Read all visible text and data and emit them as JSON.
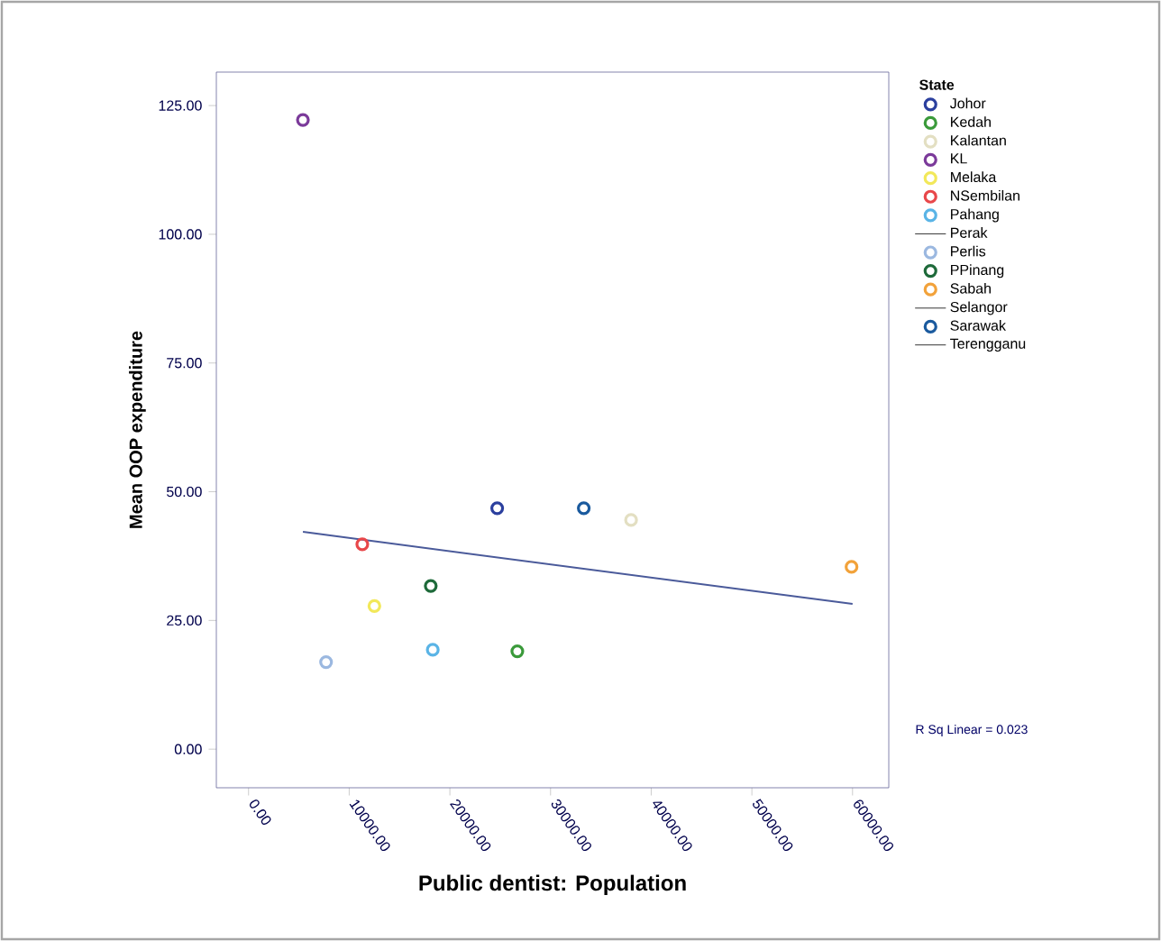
{
  "chart_data": {
    "type": "scatter",
    "xlabel": "Public dentist: Population",
    "ylabel": "Mean OOP expenditure",
    "legend_title": "State",
    "xlim": [
      -3200,
      63600
    ],
    "ylim": [
      -7.5,
      131.5
    ],
    "xticks": [
      {
        "value": 0,
        "label": "0.00"
      },
      {
        "value": 10000,
        "label": "10000.00"
      },
      {
        "value": 20000,
        "label": "20000.00"
      },
      {
        "value": 30000,
        "label": "30000.00"
      },
      {
        "value": 40000,
        "label": "40000.00"
      },
      {
        "value": 50000,
        "label": "50000.00"
      },
      {
        "value": 60000,
        "label": "60000.00"
      }
    ],
    "yticks": [
      {
        "value": 0,
        "label": "0.00"
      },
      {
        "value": 25,
        "label": "25.00"
      },
      {
        "value": 50,
        "label": "50.00"
      },
      {
        "value": 75,
        "label": "75.00"
      },
      {
        "value": 100,
        "label": "100.00"
      },
      {
        "value": 125,
        "label": "125.00"
      }
    ],
    "marker": "circle",
    "legend": "right",
    "grid": false,
    "annotations": [
      "R Sq Linear = 0.023"
    ],
    "series": [
      {
        "name": "Johor",
        "color": "#2b3f9e",
        "x": [
          24700
        ],
        "values": [
          46.8
        ]
      },
      {
        "name": "Kedah",
        "color": "#3a9a3a",
        "x": [
          26700
        ],
        "values": [
          19.0
        ]
      },
      {
        "name": "Kalantan",
        "color": "#e3dfc2",
        "x": [
          38000
        ],
        "values": [
          44.5
        ]
      },
      {
        "name": "KL",
        "color": "#7b3a9a",
        "x": [
          5400
        ],
        "values": [
          122.2
        ]
      },
      {
        "name": "Melaka",
        "color": "#f2e85a",
        "x": [
          12500
        ],
        "values": [
          27.8
        ]
      },
      {
        "name": "NSembilan",
        "color": "#e8474a",
        "x": [
          11300
        ],
        "values": [
          39.8
        ]
      },
      {
        "name": "Pahang",
        "color": "#5ab4e6",
        "x": [
          18300
        ],
        "values": [
          19.3
        ]
      },
      {
        "name": "Perak"
      },
      {
        "name": "Perlis",
        "color": "#9bb8e0",
        "x": [
          7700
        ],
        "values": [
          16.9
        ]
      },
      {
        "name": "PPinang",
        "color": "#1e6a3a",
        "x": [
          18100
        ],
        "values": [
          31.7
        ]
      },
      {
        "name": "Sabah",
        "color": "#f2a23a",
        "x": [
          59900
        ],
        "values": [
          35.4
        ]
      },
      {
        "name": "Selangor"
      },
      {
        "name": "Sarawak",
        "color": "#1a5a9e",
        "x": [
          33300
        ],
        "values": [
          46.8
        ]
      },
      {
        "name": "Terengganu"
      },
      {
        "type": "line",
        "color": "#4a5a9a",
        "marker": "none",
        "x": [
          5400,
          60000
        ],
        "values": [
          42.2,
          28.2
        ]
      }
    ]
  }
}
